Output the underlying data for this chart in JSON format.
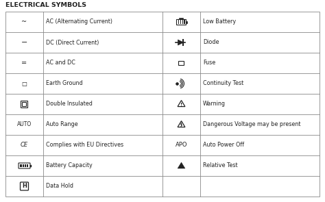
{
  "title": "ELECTRICAL SYMBOLS",
  "desc_col1": [
    "AC (Alternating Current)",
    "DC (Direct Current)",
    "AC and DC",
    "Earth Ground",
    "Double Insulated",
    "Auto Range",
    "Complies with EU Directives",
    "Battery Capacity",
    "Data Hold"
  ],
  "desc_col2": [
    "Low Battery",
    "Diode",
    "Fuse",
    "Continuity Test",
    "Warning",
    "Dangerous Voltage may be present",
    "Auto Power Off",
    "Relative Test",
    ""
  ],
  "sym_text1": [
    "~",
    "−",
    "=",
    "□",
    "□",
    "AUTO",
    "CE",
    "",
    ""
  ],
  "sym_text2": [
    "",
    "",
    "□",
    "",
    "",
    "",
    "APO",
    "▲",
    ""
  ],
  "bg_color": "#ffffff",
  "text_color": "#222222",
  "border_color": "#888888",
  "title_fontsize": 6.8,
  "cell_fontsize": 5.8,
  "sym_fontsize": 6.0
}
